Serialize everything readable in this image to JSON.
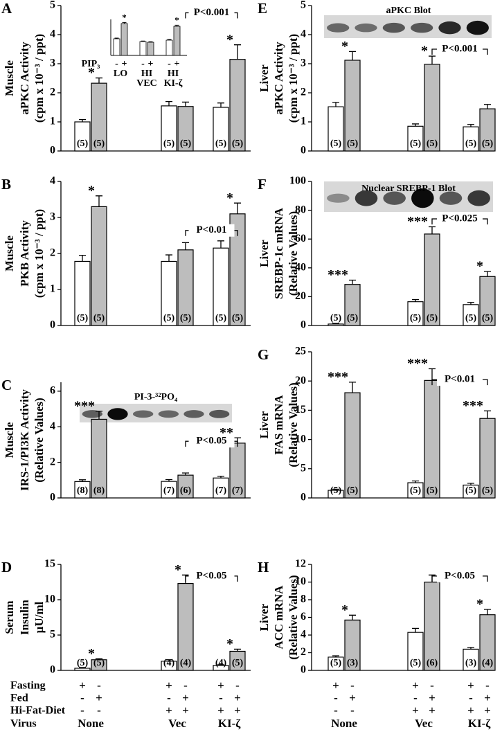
{
  "chart_data": [
    {
      "type": "bar",
      "panel": "A",
      "ylabel": [
        "Muscle",
        "aPKC Activity",
        "(cpm x 10⁻³ / ppt)"
      ],
      "ylim": [
        0,
        5
      ],
      "yticks": [
        0,
        1,
        2,
        3,
        4,
        5
      ],
      "series": [
        {
          "color": "#ffffff",
          "values": [
            1.0,
            1.55,
            1.5
          ],
          "errors": [
            0.08,
            0.15,
            0.15
          ],
          "n_labels": [
            "(5)",
            "(5)",
            "(5)"
          ]
        },
        {
          "color": "#bdbdbd",
          "values": [
            2.33,
            1.53,
            3.15
          ],
          "errors": [
            0.18,
            0.15,
            0.5
          ],
          "n_labels": [
            "(5)",
            "(5)",
            "(5)"
          ],
          "stars": [
            "*",
            null,
            "*"
          ]
        }
      ],
      "significance": "P<0.001",
      "inset": {
        "type": "bar",
        "ylim": [
          0,
          2.6
        ],
        "row_label": "PIP₃",
        "series": [
          {
            "color": "#ffffff",
            "values": [
              1.2,
              1.0,
              1.1
            ],
            "errors": [
              0.05,
              0.04,
              0.05
            ]
          },
          {
            "color": "#bdbdbd",
            "values": [
              2.3,
              0.95,
              2.1
            ],
            "errors": [
              0.08,
              0.04,
              0.08
            ],
            "stars": [
              "*",
              null,
              "*"
            ]
          }
        ],
        "x_rows": [
          [
            "-",
            "+",
            "-",
            "+",
            "-",
            "+"
          ],
          [
            "LO",
            "HI",
            "HI"
          ],
          [
            null,
            "VEC",
            "KI-ζ"
          ]
        ]
      }
    },
    {
      "type": "bar",
      "panel": "B",
      "ylabel": [
        "Muscle",
        "PKB Activity",
        "(cpm x 10⁻³ / ppt)"
      ],
      "ylim": [
        0,
        4
      ],
      "yticks": [
        0,
        1,
        2,
        3,
        4
      ],
      "series": [
        {
          "color": "#ffffff",
          "values": [
            1.78,
            1.78,
            2.15
          ],
          "errors": [
            0.17,
            0.18,
            0.2
          ],
          "n_labels": [
            "(5)",
            "(5)",
            "(5)"
          ]
        },
        {
          "color": "#bdbdbd",
          "values": [
            3.3,
            2.1,
            3.1
          ],
          "errors": [
            0.3,
            0.2,
            0.3
          ],
          "n_labels": [
            "(5)",
            "(5)",
            "(5)"
          ],
          "stars": [
            "*",
            null,
            "*"
          ]
        }
      ],
      "significance": "P<0.01"
    },
    {
      "type": "bar",
      "panel": "C",
      "ylabel": [
        "Muscle",
        "IRS-1/PI3K Activity",
        "(Relative Values)"
      ],
      "ylim": [
        0,
        6.5
      ],
      "yticks": [
        0,
        2,
        4,
        6
      ],
      "series": [
        {
          "color": "#ffffff",
          "values": [
            0.92,
            0.93,
            1.12
          ],
          "errors": [
            0.1,
            0.1,
            0.1
          ],
          "n_labels": [
            "(8)",
            "(7)",
            "(7)"
          ]
        },
        {
          "color": "#bdbdbd",
          "values": [
            4.42,
            1.28,
            3.08
          ],
          "errors": [
            0.45,
            0.12,
            0.3
          ],
          "n_labels": [
            "(8)",
            "(6)",
            "(7)"
          ],
          "stars": [
            "***",
            null,
            "**"
          ]
        }
      ],
      "significance": "P<0.05",
      "blot": "PI-3-³²PO₄"
    },
    {
      "type": "bar",
      "panel": "D",
      "ylabel": [
        "Serum",
        "Insulin",
        "µU/ml"
      ],
      "ylim": [
        0,
        15
      ],
      "yticks": [
        0,
        5,
        10,
        15
      ],
      "series": [
        {
          "color": "#ffffff",
          "values": [
            0.3,
            1.3,
            0.7
          ],
          "errors": [
            0.1,
            0.2,
            0.1
          ],
          "n_labels": [
            "(5)",
            "(4)",
            "(4)"
          ]
        },
        {
          "color": "#bdbdbd",
          "values": [
            1.5,
            12.3,
            2.7
          ],
          "errors": [
            0.15,
            1.2,
            0.3
          ],
          "n_labels": [
            "(5)",
            "(4)",
            "(5)"
          ],
          "stars": [
            "*",
            "*",
            "*"
          ]
        }
      ],
      "significance": "P<0.05"
    },
    {
      "type": "bar",
      "panel": "E",
      "ylabel": [
        "Liver",
        "aPKC Activity",
        "(cpm x 10⁻³ / ppt)"
      ],
      "ylim": [
        0,
        5
      ],
      "yticks": [
        0,
        1,
        2,
        3,
        4,
        5
      ],
      "series": [
        {
          "color": "#ffffff",
          "values": [
            1.52,
            0.85,
            0.83
          ],
          "errors": [
            0.15,
            0.08,
            0.08
          ],
          "n_labels": [
            "(5)",
            "(5)",
            "(5)"
          ]
        },
        {
          "color": "#bdbdbd",
          "values": [
            3.12,
            2.98,
            1.45
          ],
          "errors": [
            0.3,
            0.28,
            0.15
          ],
          "n_labels": [
            "(5)",
            "(5)",
            "(5)"
          ],
          "stars": [
            "*",
            "*",
            null
          ]
        }
      ],
      "significance": "P<0.001",
      "blot": "aPKC Blot"
    },
    {
      "type": "bar",
      "panel": "F",
      "ylabel": [
        "Liver",
        "SREBP-1c  mRNA",
        "(Relative Values)"
      ],
      "ylim": [
        0,
        100
      ],
      "yticks": [
        0,
        20,
        40,
        60,
        80,
        100
      ],
      "series": [
        {
          "color": "#ffffff",
          "values": [
            1,
            16.5,
            14.5
          ],
          "errors": [
            0.5,
            1.5,
            1.5
          ],
          "n_labels": [
            "(5)",
            "(5)",
            "(5)"
          ]
        },
        {
          "color": "#bdbdbd",
          "values": [
            28.5,
            63.5,
            34
          ],
          "errors": [
            3,
            5,
            3.5
          ],
          "n_labels": [
            "(5)",
            "(5)",
            "(5)"
          ],
          "stars": [
            "***",
            "***",
            "*"
          ]
        }
      ],
      "significance": "P<0.025",
      "blot": "Nuclear SREBP-1 Blot"
    },
    {
      "type": "bar",
      "panel": "G",
      "ylabel": [
        "Liver",
        "FAS  mRNA",
        "(Relative Values)"
      ],
      "ylim": [
        0,
        25
      ],
      "yticks": [
        0,
        5,
        10,
        15,
        20,
        25
      ],
      "series": [
        {
          "color": "#ffffff",
          "values": [
            1.3,
            2.6,
            2.2
          ],
          "errors": [
            0.2,
            0.3,
            0.3
          ],
          "n_labels": [
            "(5)",
            "(5)",
            "(5)"
          ]
        },
        {
          "color": "#bdbdbd",
          "values": [
            18,
            20.1,
            13.6
          ],
          "errors": [
            1.8,
            2,
            1.3
          ],
          "n_labels": [
            "(5)",
            "(5)",
            "(5)"
          ],
          "stars": [
            "***",
            "***",
            "***"
          ]
        }
      ],
      "significance": "P<0.01"
    },
    {
      "type": "bar",
      "panel": "H",
      "ylabel": [
        "Liver",
        "ACC  mRNA",
        "(Relative Values)"
      ],
      "ylim": [
        0,
        12
      ],
      "yticks": [
        0,
        2,
        4,
        6,
        8,
        10,
        12
      ],
      "series": [
        {
          "color": "#ffffff",
          "values": [
            1.5,
            4.3,
            2.4
          ],
          "errors": [
            0.15,
            0.45,
            0.2
          ],
          "n_labels": [
            "(5)",
            "(5)",
            "(3)"
          ]
        },
        {
          "color": "#bdbdbd",
          "values": [
            5.7,
            10.0,
            6.3
          ],
          "errors": [
            0.55,
            0.8,
            0.6
          ],
          "n_labels": [
            "(3)",
            "(6)",
            "(4)"
          ],
          "stars": [
            "*",
            null,
            "*"
          ]
        }
      ],
      "significance": "P<0.05"
    }
  ],
  "conditions": {
    "rows": [
      {
        "label": "Fasting",
        "values": [
          "+",
          "-",
          "+",
          "-",
          "+",
          "-"
        ]
      },
      {
        "label": "Fed",
        "values": [
          "-",
          "+",
          "-",
          "+",
          "-",
          "+"
        ]
      },
      {
        "label": "Hi-Fat-Diet",
        "values": [
          "-",
          "-",
          "+",
          "+",
          "+",
          "+"
        ]
      }
    ],
    "virus": {
      "label": "Virus",
      "values": [
        "None",
        "Vec",
        "KI-ζ"
      ]
    }
  }
}
